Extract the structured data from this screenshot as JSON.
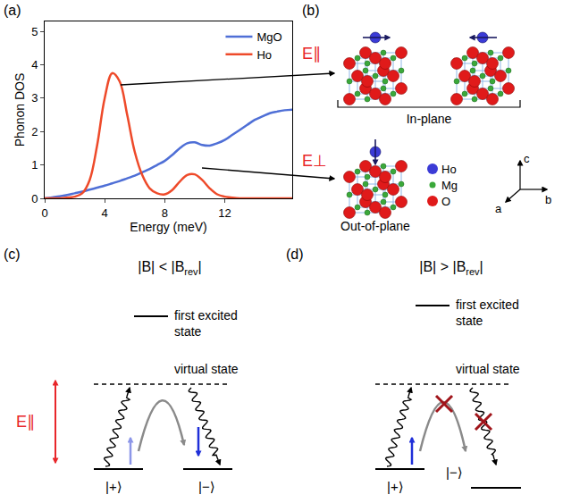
{
  "chart_data": {
    "type": "line",
    "xlabel": "Energy (meV)",
    "ylabel": "Phonon DOS",
    "x": [
      0,
      0.5,
      1,
      1.5,
      2,
      2.5,
      3,
      3.5,
      4,
      4.5,
      5,
      5.5,
      6,
      6.5,
      7,
      7.5,
      8,
      8.5,
      9,
      9.5,
      10,
      10.5,
      11,
      11.5,
      12,
      12.5,
      13,
      13.5,
      14,
      14.5,
      15,
      15.5,
      16,
      16.5
    ],
    "series": [
      {
        "name": "MgO",
        "color": "#4f6fd6",
        "values": [
          0,
          0.03,
          0.06,
          0.1,
          0.15,
          0.2,
          0.26,
          0.32,
          0.38,
          0.45,
          0.52,
          0.6,
          0.68,
          0.78,
          0.88,
          1.0,
          1.12,
          1.3,
          1.5,
          1.65,
          1.68,
          1.6,
          1.58,
          1.65,
          1.75,
          1.9,
          2.05,
          2.2,
          2.35,
          2.45,
          2.55,
          2.6,
          2.64,
          2.66
        ]
      },
      {
        "name": "Ho",
        "color": "#ee4a2a",
        "values": [
          0,
          0,
          0,
          0.02,
          0.05,
          0.15,
          0.55,
          1.6,
          3.0,
          3.75,
          3.5,
          2.5,
          1.4,
          0.7,
          0.3,
          0.15,
          0.12,
          0.25,
          0.5,
          0.7,
          0.72,
          0.55,
          0.3,
          0.12,
          0.05,
          0.02,
          0,
          0,
          0,
          0,
          0,
          0,
          0,
          0
        ]
      }
    ],
    "xlim": [
      0,
      16.5
    ],
    "ylim": [
      0,
      5.3
    ],
    "xticks": [
      0,
      4,
      8,
      12
    ],
    "yticks": [
      0,
      1,
      2,
      3,
      4,
      5
    ],
    "legend": "upper right",
    "grid": false
  },
  "panel_labels": [
    "(a)",
    "(b)",
    "(c)",
    "(d)"
  ],
  "structures": {
    "field_in_plane": "E∥",
    "field_out_of_plane": "E⊥",
    "in_plane": "In-plane",
    "out_of_plane": "Out-of-plane",
    "species": [
      {
        "label": "Ho",
        "color": "#3b3bd6"
      },
      {
        "label": "Mg",
        "color": "#3aa83a"
      },
      {
        "label": "O",
        "color": "#e01a1a"
      }
    ],
    "axes": [
      "a",
      "b",
      "c"
    ]
  },
  "levels": [
    {
      "title": {
        "text": "|B| < |B",
        "sub": "rev",
        "tail": "|"
      },
      "excited": "first excited state",
      "virtual": "virtual state",
      "plus": "|+⟩",
      "minus": "|−⟩",
      "field": "E∥",
      "allowed": true
    },
    {
      "title": {
        "text": "|B| > |B",
        "sub": "rev",
        "tail": "|"
      },
      "excited": "first excited state",
      "virtual": "virtual state",
      "plus": "|+⟩",
      "minus": "|−⟩",
      "allowed": false
    }
  ]
}
